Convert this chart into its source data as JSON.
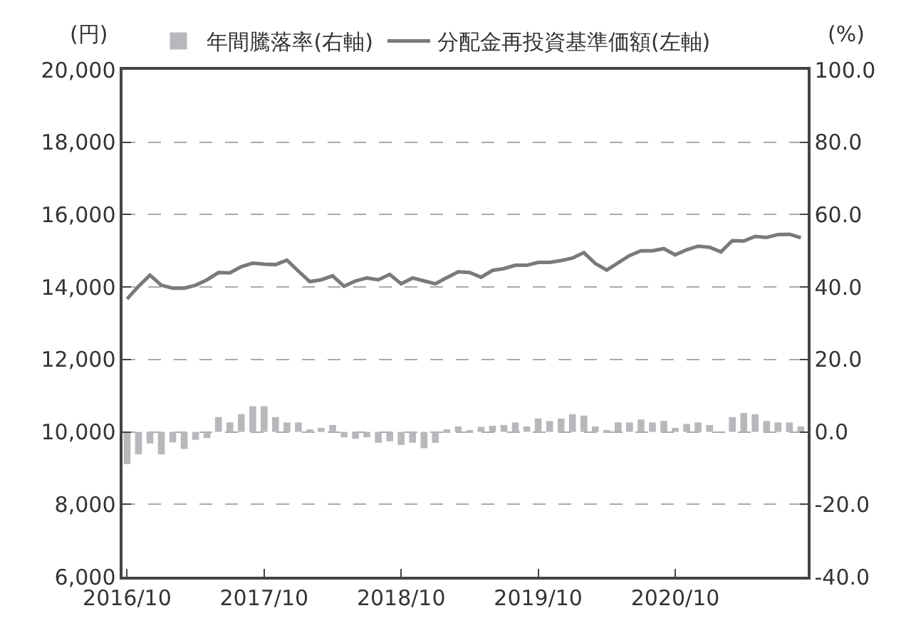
{
  "chart_data": {
    "type": "bar",
    "ylabel": "(円)",
    "y2label": "(%)",
    "categories": [
      "2016/10",
      null,
      null,
      null,
      null,
      null,
      null,
      null,
      null,
      null,
      null,
      null,
      "2017/10",
      null,
      null,
      null,
      null,
      null,
      null,
      null,
      null,
      null,
      null,
      null,
      "2018/10",
      null,
      null,
      null,
      null,
      null,
      null,
      null,
      null,
      null,
      null,
      null,
      "2019/10",
      null,
      null,
      null,
      null,
      null,
      null,
      null,
      null,
      null,
      null,
      null,
      "2020/10",
      null,
      null,
      null,
      null,
      null,
      null,
      null,
      null,
      null,
      null,
      null
    ],
    "series": [
      {
        "name": "年間騰落率(右軸)",
        "axis": "y2",
        "color": "#b8b8bc",
        "values": [
          -8.9,
          -6.2,
          -3.2,
          -6.2,
          -2.9,
          -4.7,
          -2.2,
          -1.7,
          4.1,
          2.6,
          4.9,
          7.1,
          7.1,
          4.1,
          2.6,
          2.6,
          0.7,
          1.1,
          1.9,
          -1.5,
          -1.9,
          -1.5,
          -3.0,
          -2.6,
          -3.6,
          -3.0,
          -4.5,
          -3.0,
          0.7,
          1.5,
          0.5,
          1.4,
          1.7,
          1.9,
          2.6,
          1.5,
          3.7,
          3.0,
          3.7,
          4.9,
          4.5,
          1.5,
          0.5,
          2.6,
          2.6,
          3.4,
          2.6,
          3.0,
          1.1,
          2.2,
          2.6,
          1.9,
          0,
          4.1,
          5.2,
          4.9,
          3.0,
          2.6,
          2.6,
          1.5
        ]
      },
      {
        "name": "分配金再投資基準価額(左軸)",
        "type": "line",
        "axis": "y",
        "color": "#7a7a7a",
        "values": [
          13670,
          14020,
          14330,
          14050,
          13970,
          13970,
          14050,
          14200,
          14400,
          14390,
          14560,
          14660,
          14630,
          14620,
          14740,
          14440,
          14150,
          14200,
          14310,
          14020,
          14170,
          14250,
          14200,
          14350,
          14090,
          14250,
          14170,
          14090,
          14260,
          14420,
          14400,
          14270,
          14460,
          14510,
          14600,
          14600,
          14680,
          14680,
          14730,
          14800,
          14950,
          14650,
          14470,
          14670,
          14870,
          15000,
          15000,
          15060,
          14890,
          15030,
          15130,
          15100,
          14970,
          15280,
          15270,
          15400,
          15370,
          15450,
          15460,
          15360
        ]
      }
    ],
    "ylim": [
      6000,
      20000
    ],
    "yticks": [
      {
        "value": 6000,
        "label": "6,000"
      },
      {
        "value": 8000,
        "label": "8,000"
      },
      {
        "value": 10000,
        "label": "10,000"
      },
      {
        "value": 12000,
        "label": "12,000"
      },
      {
        "value": 14000,
        "label": "14,000"
      },
      {
        "value": 16000,
        "label": "16,000"
      },
      {
        "value": 18000,
        "label": "18,000"
      },
      {
        "value": 20000,
        "label": "20,000"
      }
    ],
    "y2lim": [
      -40,
      100
    ],
    "y2ticks": [
      {
        "value": -40,
        "label": "-40.0"
      },
      {
        "value": -20,
        "label": "-20.0"
      },
      {
        "value": 0,
        "label": "0.0"
      },
      {
        "value": 20,
        "label": "20.0"
      },
      {
        "value": 40,
        "label": "40.0"
      },
      {
        "value": 60,
        "label": "60.0"
      },
      {
        "value": 80,
        "label": "80.0"
      },
      {
        "value": 100,
        "label": "100.0"
      }
    ],
    "grid": "y",
    "legend": "top"
  }
}
